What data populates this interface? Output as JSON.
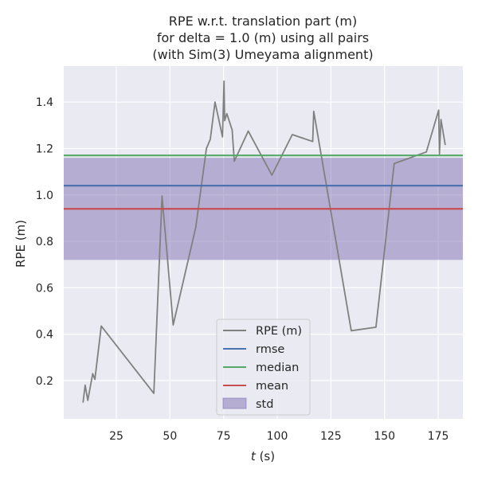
{
  "chart_data": {
    "type": "line",
    "title_lines": [
      "RPE w.r.t. translation part (m)",
      "for delta = 1.0 (m) using all pairs",
      "(with Sim(3) Umeyama alignment)"
    ],
    "xlabel_italic": "t",
    "xlabel_rest": " (s)",
    "ylabel": "RPE (m)",
    "xlim": [
      0.5,
      186.5
    ],
    "ylim": [
      0.035,
      1.555
    ],
    "x_ticks": [
      25,
      50,
      75,
      100,
      125,
      150,
      175
    ],
    "x_tick_labels": [
      "25",
      "50",
      "75",
      "100",
      "125",
      "150",
      "175"
    ],
    "y_ticks": [
      0.2,
      0.4,
      0.6,
      0.8,
      1.0,
      1.2,
      1.4
    ],
    "y_tick_labels": [
      "0.2",
      "0.4",
      "0.6",
      "0.8",
      "1.0",
      "1.2",
      "1.4"
    ],
    "grid": true,
    "legend_position": "lower-center",
    "series": [
      {
        "name": "RPE (m)",
        "color": "#808080",
        "x": [
          9.5,
          10.5,
          11.7,
          14.0,
          15.0,
          18.0,
          42.5,
          46.3,
          51.5,
          62.0,
          67.0,
          68.8,
          71.0,
          74.5,
          75.2,
          75.5,
          76.5,
          79.0,
          80.0,
          86.5,
          97.5,
          107.0,
          116.5,
          117.0,
          134.5,
          146.0,
          154.5,
          169.5,
          175.2,
          175.6,
          176.3,
          178.3
        ],
        "y": [
          0.105,
          0.18,
          0.115,
          0.23,
          0.205,
          0.435,
          0.145,
          0.995,
          0.44,
          0.86,
          1.2,
          1.24,
          1.4,
          1.25,
          1.49,
          1.32,
          1.35,
          1.28,
          1.145,
          1.275,
          1.085,
          1.26,
          1.23,
          1.36,
          0.415,
          0.43,
          1.135,
          1.185,
          1.365,
          1.175,
          1.325,
          1.215
        ]
      }
    ],
    "stats": [
      {
        "name": "rmse",
        "value": 1.04,
        "color": "#4c72b0"
      },
      {
        "name": "median",
        "value": 1.17,
        "color": "#55a868"
      },
      {
        "name": "mean",
        "value": 0.94,
        "color": "#c44e52"
      }
    ],
    "std": {
      "name": "std",
      "lower": 0.72,
      "upper": 1.16,
      "color": "#8172b2"
    },
    "legend_entries": [
      "RPE (m)",
      "rmse",
      "median",
      "mean",
      "std"
    ]
  }
}
